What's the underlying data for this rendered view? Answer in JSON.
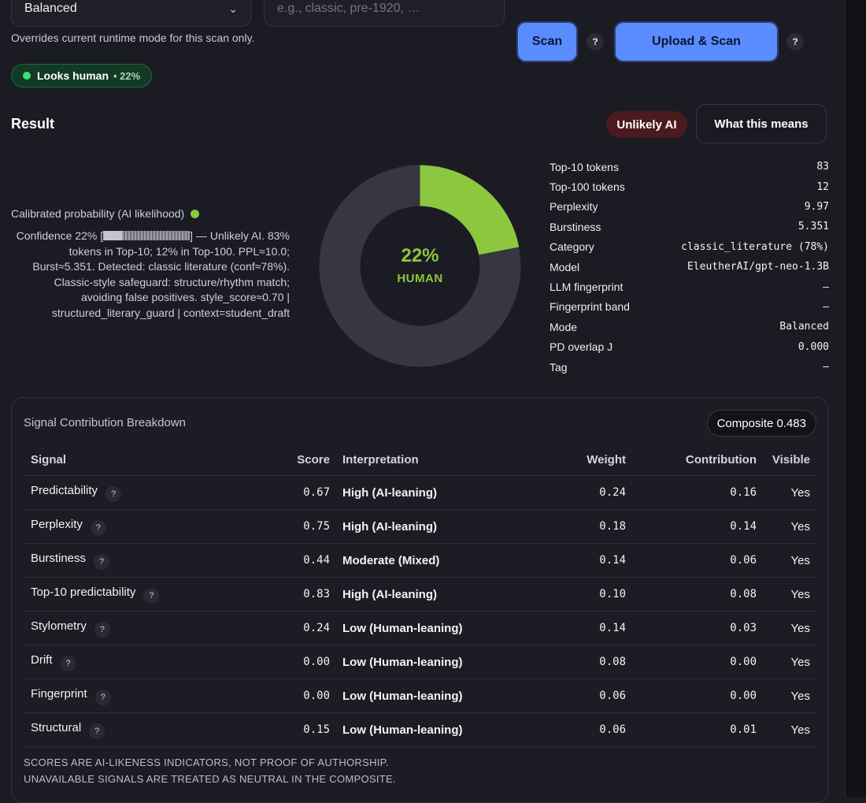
{
  "scan_controls": {
    "mode_value": "Balanced",
    "era_placeholder": "e.g., classic, pre-1920, …",
    "override_note": "Overrides current runtime mode for this scan only.",
    "scan_label": "Scan",
    "upload_scan_label": "Upload & Scan",
    "help_label": "?"
  },
  "quick_verdict": {
    "label": "Looks human",
    "pct": "• 22%",
    "color": "#3ee07a"
  },
  "result": {
    "title": "Result",
    "badge": "Unlikely AI",
    "what_means_label": "What this means",
    "calibrated_label": "Calibrated probability (AI likelihood)",
    "confidence_prefix": "Confidence 22% [",
    "confidence_suffix": "] — Unlikely AI. 83% tokens in Top-10; 12% in Top-100. PPL≈10.0; Burst≈5.351. Detected: classic literature (conf≈78%). Classic-style safeguard: structure/rhythm match; avoiding false positives. style_score≈0.70 | structured_literary_guard | context=student_draft",
    "confidence_fraction": 0.22,
    "donut": {
      "value": 0.22,
      "pct_text": "22%",
      "label": "HUMAN",
      "fill_color": "#8dc63f",
      "track_color": "#373740"
    }
  },
  "stats": [
    {
      "key": "Top-10 tokens",
      "value": "83"
    },
    {
      "key": "Top-100 tokens",
      "value": "12"
    },
    {
      "key": "Perplexity",
      "value": "9.97"
    },
    {
      "key": "Burstiness",
      "value": "5.351"
    },
    {
      "key": "Category",
      "value": "classic_literature (78%)"
    },
    {
      "key": "Model",
      "value": "EleutherAI/gpt-neo-1.3B"
    },
    {
      "key": "LLM fingerprint",
      "value": "–"
    },
    {
      "key": "Fingerprint band",
      "value": "–"
    },
    {
      "key": "Mode",
      "value": "Balanced"
    },
    {
      "key": "PD overlap J",
      "value": "0.000"
    },
    {
      "key": "Tag",
      "value": "–"
    }
  ],
  "breakdown": {
    "title": "Signal Contribution Breakdown",
    "composite": "Composite 0.483",
    "headers": [
      "Signal",
      "Score",
      "Interpretation",
      "Weight",
      "Contribution",
      "Visible"
    ],
    "rows": [
      {
        "signal": "Predictability",
        "score": "0.67",
        "interp": "High (AI-leaning)",
        "weight": "0.24",
        "contrib": "0.16",
        "visible": "Yes"
      },
      {
        "signal": "Perplexity",
        "score": "0.75",
        "interp": "High (AI-leaning)",
        "weight": "0.18",
        "contrib": "0.14",
        "visible": "Yes"
      },
      {
        "signal": "Burstiness",
        "score": "0.44",
        "interp": "Moderate (Mixed)",
        "weight": "0.14",
        "contrib": "0.06",
        "visible": "Yes"
      },
      {
        "signal": "Top-10 predictability",
        "score": "0.83",
        "interp": "High (AI-leaning)",
        "weight": "0.10",
        "contrib": "0.08",
        "visible": "Yes"
      },
      {
        "signal": "Stylometry",
        "score": "0.24",
        "interp": "Low (Human-leaning)",
        "weight": "0.14",
        "contrib": "0.03",
        "visible": "Yes"
      },
      {
        "signal": "Drift",
        "score": "0.00",
        "interp": "Low (Human-leaning)",
        "weight": "0.08",
        "contrib": "0.00",
        "visible": "Yes"
      },
      {
        "signal": "Fingerprint",
        "score": "0.00",
        "interp": "Low (Human-leaning)",
        "weight": "0.06",
        "contrib": "0.00",
        "visible": "Yes"
      },
      {
        "signal": "Structural",
        "score": "0.15",
        "interp": "Low (Human-leaning)",
        "weight": "0.06",
        "contrib": "0.01",
        "visible": "Yes"
      }
    ],
    "disclaimer_1": "SCORES ARE AI-LIKENESS INDICATORS, NOT PROOF OF AUTHORSHIP.",
    "disclaimer_2": "UNAVAILABLE SIGNALS ARE TREATED AS NEUTRAL IN THE COMPOSITE."
  }
}
